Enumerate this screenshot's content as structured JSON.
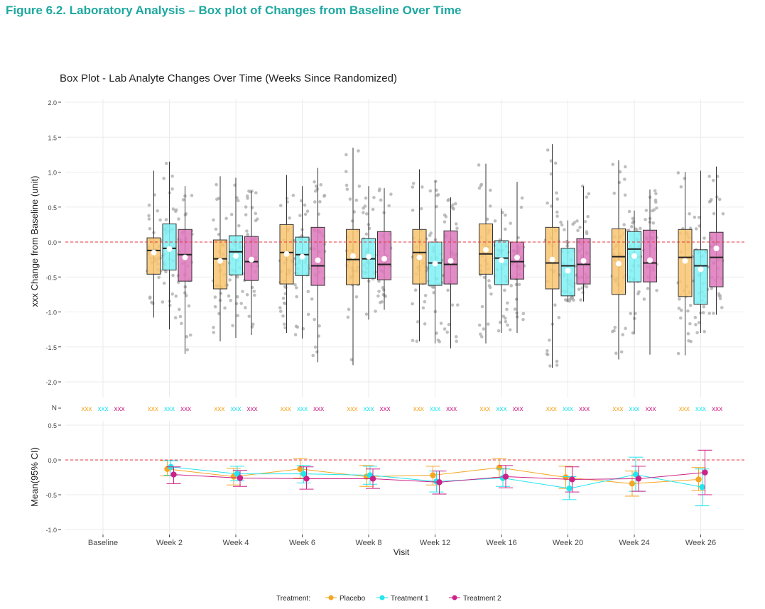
{
  "figure_title": "Figure 6.2. Laboratory Analysis – Box plot of Changes from Baseline Over Time",
  "colors": {
    "placebo": "#f5a623",
    "treatment1": "#22e5ee",
    "treatment2": "#cc2288",
    "placebo_box": "#f9c46e",
    "treatment1_box": "#7ff1f5",
    "treatment2_box": "#dd77bb",
    "reference_line": "#e8333c",
    "jitter": "#aaaaaa",
    "grid": "#ebebeb"
  },
  "chart_data": [
    {
      "type": "box",
      "title": "Box Plot - Lab Analyte Changes Over Time (Weeks Since Randomized)",
      "ylabel": "xxx Change from Baseline (unit)",
      "ylim": [
        -2.2,
        2.05
      ],
      "yticks": [
        "2.0",
        "1.5",
        "1.0",
        "0.5",
        "0.0",
        "-0.5",
        "-1.0",
        "-1.5",
        "-2.0"
      ],
      "reference_line": 0,
      "categories": [
        "Baseline",
        "Week 2",
        "Week 4",
        "Week 6",
        "Week 8",
        "Week 12",
        "Week 16",
        "Week 20",
        "Week 24",
        "Week 26"
      ],
      "n_label": "N",
      "n_values": {
        "placebo": [
          "xxx",
          "xxx",
          "xxx",
          "xxx",
          "xxx",
          "xxx",
          "xxx",
          "xxx",
          "xxx",
          "xxx"
        ],
        "treatment1": [
          "xxx",
          "xxx",
          "xxx",
          "xxx",
          "xxx",
          "xxx",
          "xxx",
          "xxx",
          "xxx",
          "xxx"
        ],
        "treatment2": [
          "xxx",
          "xxx",
          "xxx",
          "xxx",
          "xxx",
          "xxx",
          "xxx",
          "xxx",
          "xxx",
          "xxx"
        ]
      },
      "series": [
        {
          "name": "Placebo",
          "key": "placebo",
          "boxes": [
            null,
            {
              "min": -1.08,
              "q1": -0.46,
              "median": -0.12,
              "q3": 0.06,
              "max": 1.02,
              "mean": -0.15
            },
            {
              "min": -1.42,
              "q1": -0.67,
              "median": -0.24,
              "q3": 0.03,
              "max": 0.94,
              "mean": -0.27
            },
            {
              "min": -1.3,
              "q1": -0.6,
              "median": -0.15,
              "q3": 0.25,
              "max": 0.96,
              "mean": -0.17
            },
            {
              "min": -1.76,
              "q1": -0.61,
              "median": -0.25,
              "q3": 0.18,
              "max": 1.35,
              "mean": -0.2
            },
            {
              "min": -1.42,
              "q1": -0.6,
              "median": -0.15,
              "q3": 0.18,
              "max": 1.04,
              "mean": -0.22
            },
            {
              "min": -1.45,
              "q1": -0.46,
              "median": -0.17,
              "q3": 0.26,
              "max": 1.12,
              "mean": -0.11
            },
            {
              "min": -1.8,
              "q1": -0.67,
              "median": -0.3,
              "q3": 0.21,
              "max": 1.4,
              "mean": -0.25
            },
            {
              "min": -1.68,
              "q1": -0.75,
              "median": -0.21,
              "q3": 0.19,
              "max": 1.17,
              "mean": -0.31
            },
            {
              "min": -1.62,
              "q1": -0.78,
              "median": -0.22,
              "q3": 0.18,
              "max": 1.0,
              "mean": -0.27
            }
          ]
        },
        {
          "name": "Treatment 1",
          "key": "treatment1",
          "boxes": [
            null,
            {
              "min": -1.25,
              "q1": -0.4,
              "median": -0.09,
              "q3": 0.26,
              "max": 1.15,
              "mean": -0.1
            },
            {
              "min": -1.37,
              "q1": -0.47,
              "median": -0.14,
              "q3": 0.09,
              "max": 0.92,
              "mean": -0.2
            },
            {
              "min": -1.38,
              "q1": -0.48,
              "median": -0.18,
              "q3": 0.07,
              "max": 0.8,
              "mean": -0.21
            },
            {
              "min": -1.11,
              "q1": -0.52,
              "median": -0.24,
              "q3": 0.05,
              "max": 0.8,
              "mean": -0.21
            },
            {
              "min": -1.45,
              "q1": -0.62,
              "median": -0.3,
              "q3": 0.0,
              "max": 0.88,
              "mean": -0.31
            },
            {
              "min": -1.3,
              "q1": -0.61,
              "median": -0.23,
              "q3": 0.02,
              "max": 0.48,
              "mean": -0.26
            },
            {
              "min": -0.85,
              "q1": -0.77,
              "median": -0.34,
              "q3": -0.09,
              "max": 0.31,
              "mean": -0.41
            },
            {
              "min": -1.32,
              "q1": -0.57,
              "median": -0.1,
              "q3": 0.15,
              "max": 0.45,
              "mean": -0.2
            },
            {
              "min": -1.3,
              "q1": -0.89,
              "median": -0.34,
              "q3": -0.11,
              "max": 1.02,
              "mean": -0.39
            }
          ]
        },
        {
          "name": "Treatment 2",
          "key": "treatment2",
          "boxes": [
            null,
            {
              "min": -1.6,
              "q1": -0.56,
              "median": -0.18,
              "q3": 0.18,
              "max": 0.8,
              "mean": -0.22
            },
            {
              "min": -1.33,
              "q1": -0.55,
              "median": -0.28,
              "q3": 0.08,
              "max": 0.73,
              "mean": -0.25
            },
            {
              "min": -1.72,
              "q1": -0.62,
              "median": -0.34,
              "q3": 0.21,
              "max": 1.06,
              "mean": -0.26
            },
            {
              "min": -0.97,
              "q1": -0.54,
              "median": -0.32,
              "q3": 0.15,
              "max": 0.77,
              "mean": -0.24
            },
            {
              "min": -1.52,
              "q1": -0.6,
              "median": -0.32,
              "q3": 0.16,
              "max": 0.64,
              "mean": -0.27
            },
            {
              "min": -1.3,
              "q1": -0.53,
              "median": -0.28,
              "q3": 0.0,
              "max": 0.86,
              "mean": -0.22
            },
            {
              "min": -0.85,
              "q1": -0.6,
              "median": -0.32,
              "q3": 0.05,
              "max": 0.8,
              "mean": -0.27
            },
            {
              "min": -1.61,
              "q1": -0.57,
              "median": -0.3,
              "q3": 0.17,
              "max": 0.75,
              "mean": -0.26
            },
            {
              "min": -1.04,
              "q1": -0.64,
              "median": -0.22,
              "q3": 0.14,
              "max": 1.08,
              "mean": -0.09
            }
          ]
        }
      ]
    },
    {
      "type": "line",
      "ylabel": "Mean(95% CI)",
      "xlabel": "Visit",
      "ylim": [
        -1.02,
        0.52
      ],
      "yticks": [
        "0.5",
        "0.0",
        "-0.5",
        "-1.0"
      ],
      "reference_line": 0,
      "categories": [
        "Baseline",
        "Week 2",
        "Week 4",
        "Week 6",
        "Week 8",
        "Week 12",
        "Week 16",
        "Week 20",
        "Week 24",
        "Week 26"
      ],
      "series": [
        {
          "name": "Placebo",
          "key": "placebo",
          "mean": [
            null,
            -0.13,
            -0.24,
            -0.13,
            -0.24,
            -0.22,
            -0.11,
            -0.25,
            -0.34,
            -0.28
          ],
          "lower": [
            null,
            -0.23,
            -0.36,
            -0.26,
            -0.38,
            -0.36,
            -0.25,
            -0.41,
            -0.52,
            -0.44
          ],
          "upper": [
            null,
            -0.01,
            -0.12,
            0.02,
            -0.08,
            -0.09,
            0.02,
            -0.09,
            -0.16,
            -0.11
          ]
        },
        {
          "name": "Treatment 1",
          "key": "treatment1",
          "mean": [
            null,
            -0.1,
            -0.2,
            -0.2,
            -0.22,
            -0.31,
            -0.26,
            -0.41,
            -0.21,
            -0.39
          ],
          "lower": [
            null,
            -0.22,
            -0.3,
            -0.33,
            -0.35,
            -0.46,
            -0.38,
            -0.57,
            -0.45,
            -0.66
          ],
          "upper": [
            null,
            -0.01,
            -0.09,
            -0.08,
            -0.09,
            -0.16,
            -0.13,
            -0.24,
            0.04,
            -0.13
          ]
        },
        {
          "name": "Treatment 2",
          "key": "treatment2",
          "mean": [
            null,
            -0.21,
            -0.26,
            -0.27,
            -0.27,
            -0.32,
            -0.24,
            -0.28,
            -0.27,
            -0.18
          ],
          "lower": [
            null,
            -0.34,
            -0.38,
            -0.42,
            -0.41,
            -0.49,
            -0.4,
            -0.46,
            -0.45,
            -0.5
          ],
          "upper": [
            null,
            -0.1,
            -0.15,
            -0.1,
            -0.13,
            -0.16,
            -0.08,
            -0.1,
            -0.09,
            0.14
          ]
        }
      ]
    }
  ],
  "legend": {
    "title": "Treatment:",
    "items": [
      {
        "label": "Placebo",
        "key": "placebo"
      },
      {
        "label": "Treatment 1",
        "key": "treatment1"
      },
      {
        "label": "Treatment 2",
        "key": "treatment2"
      }
    ]
  }
}
